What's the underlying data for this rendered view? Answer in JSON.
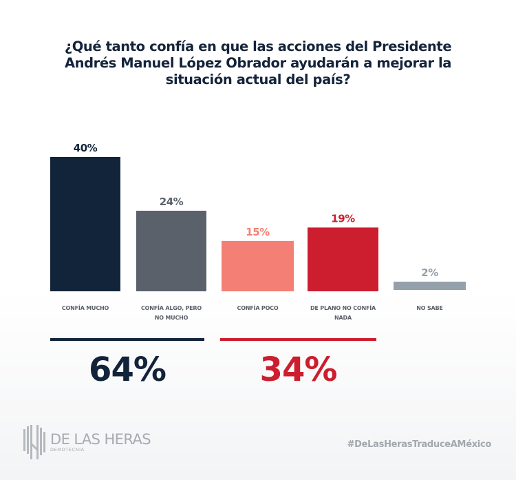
{
  "title": "¿Qué tanto confía en que las acciones del Presidente Andrés Manuel López Obrador ayudarán a mejorar la situación actual del país?",
  "chart_data": {
    "type": "bar",
    "title": "¿Qué tanto confía en que las acciones del Presidente Andrés Manuel López Obrador ayudarán a mejorar la situación actual del país?",
    "xlabel": "",
    "ylabel": "",
    "ylim": [
      0,
      40
    ],
    "grid": false,
    "legend": "none",
    "categories": [
      "CONFÍA MUCHO",
      "CONFÍA ALGO, PERO NO MUCHO",
      "CONFÍA POCO",
      "DE PLANO NO CONFÍA NADA",
      "NO SABE"
    ],
    "category_lines": [
      [
        "CONFÍA MUCHO"
      ],
      [
        "CONFÍA ALGO, PERO",
        "NO MUCHO"
      ],
      [
        "CONFÍA POCO"
      ],
      [
        "DE PLANO NO CONFÍA",
        "NADA"
      ],
      [
        "NO SABE"
      ]
    ],
    "values": [
      40,
      24,
      15,
      19,
      2
    ],
    "value_labels": [
      "40%",
      "24%",
      "15%",
      "19%",
      "2%"
    ],
    "colors": [
      "#12243a",
      "#5b616b",
      "#f47f74",
      "#cc1e2e",
      "#94a0aa"
    ],
    "summaries": [
      {
        "label": "64%",
        "value": 64,
        "color": "#12243a",
        "groups": [
          "CONFÍA MUCHO",
          "CONFÍA ALGO, PERO NO MUCHO"
        ]
      },
      {
        "label": "34%",
        "value": 34,
        "color": "#cc1e2e",
        "groups": [
          "CONFÍA POCO",
          "DE PLANO NO CONFÍA NADA"
        ]
      }
    ]
  },
  "footer": {
    "logo_name": "DE LAS HERAS",
    "logo_sub": "DEMOTECNIA",
    "hashtag": "#DeLasHerasTraduceAMéxico"
  }
}
